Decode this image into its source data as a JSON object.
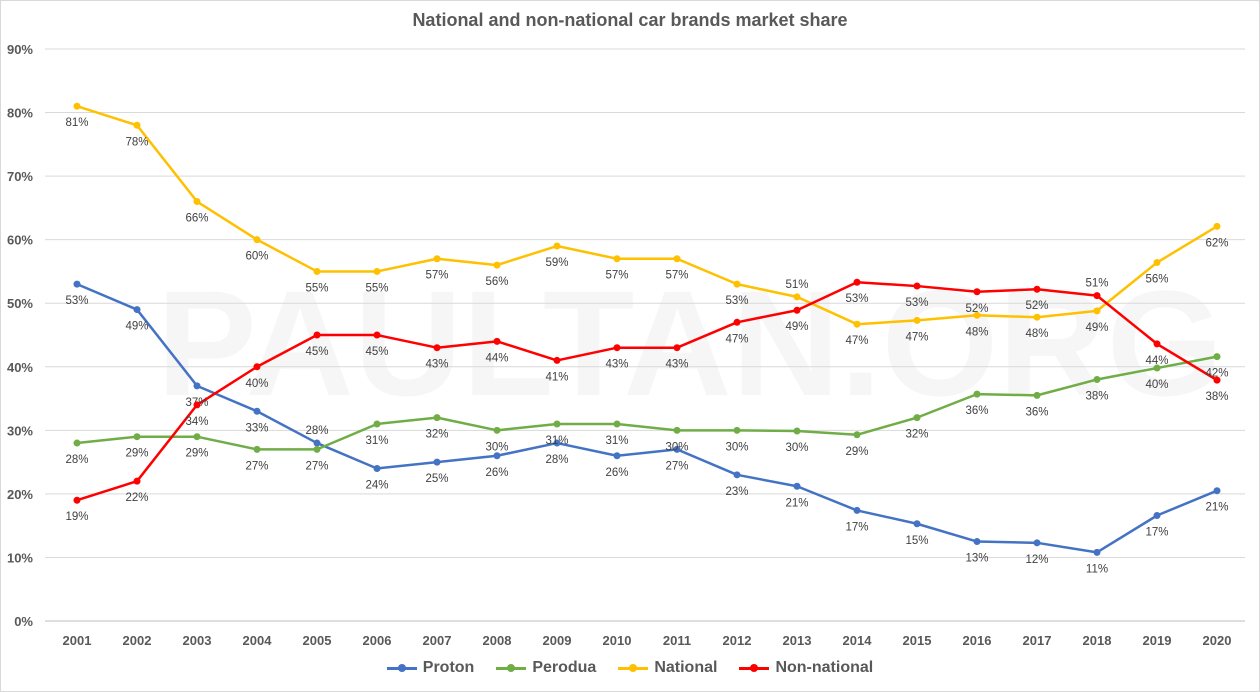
{
  "chart_data": {
    "type": "line",
    "title": "National and non-national car brands market share",
    "watermark": "PAULTAN.ORG",
    "x": [
      "2001",
      "2002",
      "2003",
      "2004",
      "2005",
      "2006",
      "2007",
      "2008",
      "2009",
      "2010",
      "2011",
      "2012",
      "2013",
      "2014",
      "2015",
      "2016",
      "2017",
      "2018",
      "2019",
      "2020"
    ],
    "ylim": [
      0,
      90
    ],
    "yticks": [
      "0%",
      "10%",
      "20%",
      "30%",
      "40%",
      "50%",
      "60%",
      "70%",
      "80%",
      "90%"
    ],
    "grid": true,
    "legend": "bottom",
    "series": [
      {
        "name": "Proton",
        "color": "#4472c4",
        "values": [
          53,
          49,
          37,
          33,
          28,
          24,
          25,
          26,
          28,
          26,
          27,
          23,
          21.2,
          17.4,
          15.3,
          12.5,
          12.3,
          10.8,
          16.6,
          20.5
        ],
        "labels": [
          "53%",
          "49%",
          "37%",
          "33%",
          "28%",
          "24%",
          "25%",
          "26%",
          "28%",
          "26%",
          "27%",
          "23%",
          "21%",
          "17%",
          "15%",
          "13%",
          "12%",
          "11%",
          "17%",
          "21%"
        ]
      },
      {
        "name": "Perodua",
        "color": "#70ad47",
        "values": [
          28,
          29,
          29,
          27,
          27,
          31,
          32,
          30,
          31,
          31,
          30,
          30,
          29.9,
          29.3,
          32,
          35.7,
          35.5,
          38,
          39.8,
          41.6
        ],
        "labels": [
          "28%",
          "29%",
          "29%",
          "27%",
          "27%",
          "31%",
          "32%",
          "30%",
          "31%",
          "31%",
          "30%",
          "30%",
          "30%",
          "29%",
          "32%",
          "36%",
          "36%",
          "38%",
          "40%",
          "42%"
        ]
      },
      {
        "name": "National",
        "color": "#ffc000",
        "values": [
          81,
          78,
          66,
          60,
          55,
          55,
          57,
          56,
          59,
          57,
          57,
          53,
          51,
          46.7,
          47.3,
          48.1,
          47.8,
          48.8,
          56.4,
          62.1
        ],
        "labels": [
          "81%",
          "78%",
          "66%",
          "60%",
          "55%",
          "55%",
          "57%",
          "56%",
          "59%",
          "57%",
          "57%",
          "53%",
          "51%",
          "47%",
          "47%",
          "48%",
          "48%",
          "49%",
          "56%",
          "62%"
        ]
      },
      {
        "name": "Non-national",
        "color": "#ff0000",
        "values": [
          19,
          22,
          34,
          40,
          45,
          45,
          43,
          44,
          41,
          43,
          43,
          47,
          48.9,
          53.3,
          52.7,
          51.8,
          52.2,
          51.2,
          43.6,
          37.9
        ],
        "labels": [
          "19%",
          "22%",
          "34%",
          "40%",
          "45%",
          "45%",
          "43%",
          "44%",
          "41%",
          "43%",
          "43%",
          "47%",
          "49%",
          "53%",
          "53%",
          "52%",
          "52%",
          "51%",
          "44%",
          "38%"
        ]
      }
    ]
  }
}
